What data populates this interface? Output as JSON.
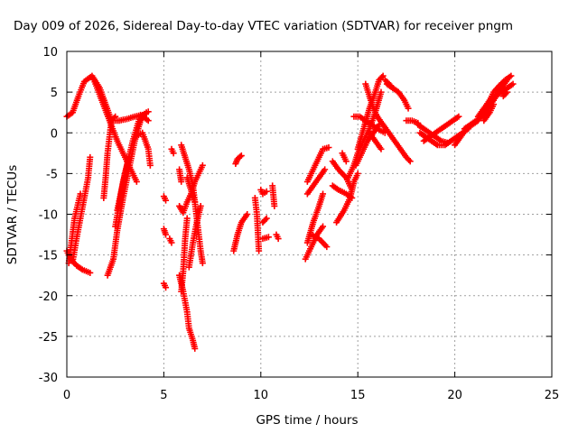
{
  "chart_data": {
    "type": "scatter",
    "title": "Day 009 of 2026, Sidereal Day-to-day VTEC variation (SDTVAR) for receiver pngm",
    "xlabel": "GPS time / hours",
    "ylabel": "SDTVAR / TECUs",
    "xlim": [
      0,
      25
    ],
    "ylim": [
      -30,
      10
    ],
    "xticks": [
      0,
      5,
      10,
      15,
      20,
      25
    ],
    "yticks": [
      -30,
      -25,
      -20,
      -15,
      -10,
      -5,
      0,
      5,
      10
    ],
    "grid": true,
    "marker": "+",
    "color": "#ff0000",
    "tracks": [
      [
        [
          0.0,
          2.0
        ],
        [
          0.3,
          2.5
        ],
        [
          0.6,
          4.5
        ],
        [
          0.9,
          6.3
        ],
        [
          1.3,
          7.0
        ],
        [
          1.7,
          5.5
        ],
        [
          2.0,
          3.5
        ],
        [
          2.3,
          1.5
        ],
        [
          2.7,
          1.5
        ],
        [
          3.1,
          1.7
        ],
        [
          3.5,
          2.0
        ],
        [
          3.9,
          2.2
        ],
        [
          4.2,
          2.6
        ]
      ],
      [
        [
          0.0,
          -14.5
        ],
        [
          0.2,
          -15.5
        ],
        [
          0.5,
          -16.3
        ],
        [
          0.8,
          -16.8
        ],
        [
          1.2,
          -17.2
        ]
      ],
      [
        [
          0.1,
          -15.0
        ],
        [
          0.3,
          -15.8
        ],
        [
          0.5,
          -13.0
        ],
        [
          0.7,
          -10.5
        ],
        [
          0.9,
          -8.0
        ],
        [
          1.1,
          -5.5
        ],
        [
          1.2,
          -3.0
        ]
      ],
      [
        [
          0.1,
          -16.0
        ],
        [
          0.4,
          -10.5
        ],
        [
          0.7,
          -7.5
        ]
      ],
      [
        [
          1.4,
          6.5
        ],
        [
          1.8,
          4.0
        ],
        [
          2.2,
          1.5
        ],
        [
          2.6,
          -1.0
        ],
        [
          3.0,
          -3.0
        ],
        [
          3.4,
          -5.0
        ],
        [
          3.6,
          -6.0
        ]
      ],
      [
        [
          1.9,
          -8.0
        ],
        [
          2.0,
          -5.5
        ],
        [
          2.1,
          -2.5
        ],
        [
          2.2,
          -0.5
        ],
        [
          2.3,
          1.5
        ],
        [
          2.5,
          2.0
        ]
      ],
      [
        [
          2.1,
          -17.5
        ],
        [
          2.4,
          -15.5
        ],
        [
          2.6,
          -12.0
        ],
        [
          2.9,
          -8.0
        ],
        [
          3.2,
          -4.5
        ],
        [
          3.5,
          -1.0
        ],
        [
          3.8,
          1.5
        ],
        [
          4.1,
          2.5
        ]
      ],
      [
        [
          2.6,
          -9.5
        ],
        [
          3.0,
          -5.0
        ],
        [
          3.4,
          -1.0
        ],
        [
          3.8,
          2.2
        ],
        [
          4.2,
          1.5
        ]
      ],
      [
        [
          3.5,
          -0.5
        ],
        [
          3.9,
          0.0
        ],
        [
          4.2,
          -2.0
        ],
        [
          4.3,
          -4.0
        ]
      ],
      [
        [
          2.5,
          -11.5
        ],
        [
          2.9,
          -6.0
        ],
        [
          3.2,
          -3.0
        ]
      ],
      [
        [
          5.0,
          -7.8
        ],
        [
          5.1,
          -8.3
        ]
      ],
      [
        [
          5.0,
          -11.8
        ],
        [
          5.1,
          -12.5
        ]
      ],
      [
        [
          5.0,
          -18.5
        ],
        [
          5.1,
          -19.0
        ]
      ],
      [
        [
          5.3,
          -13.0
        ],
        [
          5.4,
          -13.5
        ]
      ],
      [
        [
          5.4,
          -2.0
        ],
        [
          5.5,
          -2.5
        ]
      ],
      [
        [
          5.9,
          -1.5
        ],
        [
          6.1,
          -3.0
        ],
        [
          6.3,
          -4.5
        ],
        [
          6.5,
          -6.5
        ],
        [
          6.6,
          -8.5
        ],
        [
          6.7,
          -10.5
        ],
        [
          6.8,
          -12.5
        ],
        [
          6.9,
          -14.5
        ],
        [
          7.0,
          -16.0
        ]
      ],
      [
        [
          5.8,
          -9.0
        ],
        [
          6.0,
          -9.8
        ],
        [
          6.2,
          -8.5
        ],
        [
          6.4,
          -7.5
        ],
        [
          6.6,
          -6.0
        ],
        [
          6.8,
          -5.0
        ],
        [
          7.0,
          -4.0
        ]
      ],
      [
        [
          5.8,
          -17.5
        ],
        [
          6.0,
          -19.5
        ],
        [
          6.2,
          -22.0
        ],
        [
          6.3,
          -24.0
        ],
        [
          6.5,
          -25.5
        ],
        [
          6.6,
          -26.5
        ]
      ],
      [
        [
          5.8,
          -4.5
        ],
        [
          5.9,
          -6.0
        ]
      ],
      [
        [
          5.9,
          -19.5
        ],
        [
          6.0,
          -17.0
        ],
        [
          6.1,
          -13.0
        ],
        [
          6.2,
          -10.5
        ]
      ],
      [
        [
          6.2,
          -5.5
        ],
        [
          6.4,
          -7.0
        ],
        [
          6.6,
          -8.5
        ]
      ],
      [
        [
          6.3,
          -16.5
        ],
        [
          6.5,
          -13.5
        ],
        [
          6.7,
          -11.0
        ],
        [
          6.9,
          -9.0
        ]
      ],
      [
        [
          8.6,
          -14.5
        ],
        [
          8.8,
          -12.5
        ],
        [
          9.0,
          -11.0
        ],
        [
          9.3,
          -10.0
        ]
      ],
      [
        [
          8.7,
          -3.8
        ],
        [
          8.8,
          -3.2
        ],
        [
          9.0,
          -2.8
        ]
      ],
      [
        [
          9.7,
          -8.0
        ],
        [
          9.8,
          -10.0
        ],
        [
          9.9,
          -14.5
        ]
      ],
      [
        [
          10.0,
          -7.0
        ],
        [
          10.1,
          -7.5
        ],
        [
          10.3,
          -7.2
        ]
      ],
      [
        [
          10.1,
          -11.0
        ],
        [
          10.3,
          -10.5
        ]
      ],
      [
        [
          10.1,
          -13.0
        ],
        [
          10.4,
          -12.8
        ]
      ],
      [
        [
          10.6,
          -6.5
        ],
        [
          10.7,
          -9.0
        ]
      ],
      [
        [
          10.8,
          -12.5
        ],
        [
          10.9,
          -13.0
        ]
      ],
      [
        [
          12.3,
          -15.5
        ],
        [
          12.6,
          -14.0
        ],
        [
          12.9,
          -12.5
        ],
        [
          13.2,
          -11.5
        ]
      ],
      [
        [
          12.4,
          -13.5
        ],
        [
          12.7,
          -11.0
        ],
        [
          13.0,
          -9.0
        ],
        [
          13.2,
          -7.5
        ]
      ],
      [
        [
          12.4,
          -7.5
        ],
        [
          12.7,
          -6.5
        ],
        [
          13.0,
          -5.5
        ],
        [
          13.3,
          -4.5
        ]
      ],
      [
        [
          12.4,
          -6.0
        ],
        [
          12.7,
          -4.5
        ],
        [
          13.0,
          -3.0
        ],
        [
          13.2,
          -2.0
        ],
        [
          13.5,
          -1.8
        ]
      ],
      [
        [
          12.6,
          -12.5
        ],
        [
          13.0,
          -13.0
        ],
        [
          13.4,
          -14.0
        ]
      ],
      [
        [
          13.7,
          -3.5
        ],
        [
          14.0,
          -4.5
        ],
        [
          14.4,
          -5.5
        ],
        [
          14.7,
          -7.0
        ]
      ],
      [
        [
          13.7,
          -6.5
        ],
        [
          14.0,
          -7.0
        ],
        [
          14.4,
          -7.5
        ],
        [
          14.7,
          -8.0
        ]
      ],
      [
        [
          13.9,
          -11.0
        ],
        [
          14.3,
          -9.5
        ],
        [
          14.6,
          -8.0
        ],
        [
          14.8,
          -6.0
        ],
        [
          15.0,
          -5.0
        ]
      ],
      [
        [
          14.2,
          -2.5
        ],
        [
          14.4,
          -3.5
        ]
      ],
      [
        [
          14.5,
          -5.5
        ],
        [
          14.8,
          -4.0
        ],
        [
          15.0,
          -2.5
        ],
        [
          15.3,
          -1.0
        ],
        [
          15.6,
          0.5
        ],
        [
          15.9,
          2.5
        ],
        [
          16.2,
          5.0
        ]
      ],
      [
        [
          14.9,
          -4.0
        ],
        [
          15.2,
          -2.5
        ],
        [
          15.5,
          -1.0
        ],
        [
          15.8,
          0.0
        ],
        [
          16.1,
          1.0
        ]
      ],
      [
        [
          15.0,
          -2.0
        ],
        [
          15.3,
          0.5
        ],
        [
          15.6,
          3.0
        ],
        [
          15.9,
          5.0
        ],
        [
          16.1,
          6.5
        ],
        [
          16.3,
          7.0
        ]
      ],
      [
        [
          15.4,
          6.0
        ],
        [
          15.6,
          4.5
        ],
        [
          15.8,
          3.0
        ],
        [
          16.0,
          2.0
        ]
      ],
      [
        [
          15.6,
          0.0
        ],
        [
          15.9,
          -1.0
        ],
        [
          16.2,
          -2.0
        ]
      ],
      [
        [
          14.8,
          2.0
        ],
        [
          15.1,
          2.0
        ],
        [
          15.4,
          1.5
        ],
        [
          15.7,
          1.0
        ],
        [
          16.0,
          0.5
        ],
        [
          16.4,
          0.0
        ]
      ],
      [
        [
          16.0,
          2.0
        ],
        [
          16.3,
          1.0
        ],
        [
          16.6,
          0.0
        ],
        [
          16.9,
          -1.0
        ],
        [
          17.2,
          -2.0
        ],
        [
          17.5,
          -3.0
        ],
        [
          17.7,
          -3.5
        ]
      ],
      [
        [
          16.5,
          6.0
        ],
        [
          16.8,
          5.5
        ],
        [
          17.1,
          5.0
        ],
        [
          17.4,
          4.0
        ],
        [
          17.6,
          3.0
        ]
      ],
      [
        [
          16.4,
          6.5
        ],
        [
          16.7,
          5.8
        ]
      ],
      [
        [
          17.5,
          1.5
        ],
        [
          17.8,
          1.5
        ],
        [
          18.1,
          1.2
        ]
      ],
      [
        [
          18.1,
          1.0
        ],
        [
          18.4,
          0.5
        ],
        [
          18.7,
          0.0
        ],
        [
          19.0,
          -0.5
        ],
        [
          19.3,
          -1.0
        ],
        [
          19.6,
          -1.2
        ]
      ],
      [
        [
          18.2,
          0.0
        ],
        [
          18.5,
          -0.5
        ],
        [
          18.8,
          -1.0
        ],
        [
          19.1,
          -1.5
        ],
        [
          19.4,
          -1.5
        ]
      ],
      [
        [
          18.4,
          -1.0
        ],
        [
          18.7,
          -0.5
        ],
        [
          19.0,
          0.0
        ],
        [
          19.3,
          0.5
        ],
        [
          19.6,
          1.0
        ],
        [
          19.9,
          1.5
        ],
        [
          20.2,
          2.0
        ]
      ],
      [
        [
          19.5,
          -1.5
        ],
        [
          19.8,
          -1.0
        ],
        [
          20.1,
          -0.5
        ],
        [
          20.4,
          0.0
        ],
        [
          20.7,
          0.5
        ]
      ],
      [
        [
          20.0,
          -1.5
        ],
        [
          20.3,
          -0.5
        ],
        [
          20.6,
          0.5
        ],
        [
          20.9,
          1.0
        ],
        [
          21.2,
          1.5
        ]
      ],
      [
        [
          20.5,
          0.5
        ],
        [
          20.8,
          1.0
        ],
        [
          21.1,
          1.5
        ],
        [
          21.4,
          2.0
        ],
        [
          21.7,
          3.0
        ],
        [
          22.0,
          4.0
        ],
        [
          22.4,
          5.5
        ],
        [
          22.7,
          6.5
        ]
      ],
      [
        [
          21.2,
          2.0
        ],
        [
          21.5,
          3.0
        ],
        [
          21.8,
          4.0
        ],
        [
          22.0,
          5.0
        ],
        [
          22.3,
          5.8
        ],
        [
          22.6,
          6.5
        ],
        [
          22.9,
          7.0
        ]
      ],
      [
        [
          21.8,
          4.0
        ],
        [
          22.1,
          4.5
        ],
        [
          22.4,
          5.0
        ],
        [
          22.7,
          5.5
        ],
        [
          23.0,
          6.0
        ]
      ],
      [
        [
          21.5,
          1.5
        ],
        [
          21.8,
          2.5
        ],
        [
          22.0,
          3.5
        ]
      ],
      [
        [
          22.5,
          4.5
        ],
        [
          22.7,
          5.0
        ]
      ]
    ]
  }
}
